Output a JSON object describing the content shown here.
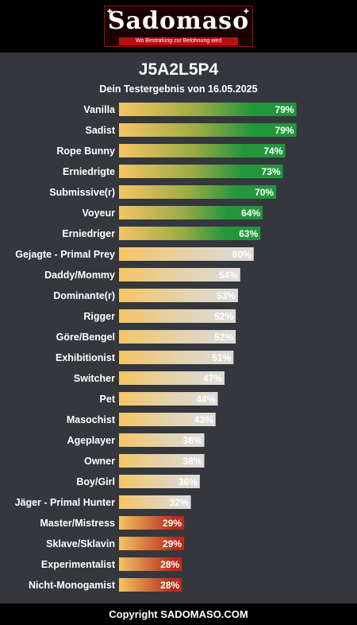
{
  "header": {
    "logo_text": "Sadomaso",
    "tagline": "Wo Bestrafung zur Belohnung wird"
  },
  "title": "J5A2L5P4",
  "subtitle": "Dein Testergebnis von 16.05.2025",
  "footer": "Copyright SADOMASO.COM",
  "colors": {
    "bar_start": "#f5c563",
    "high": "#23963c",
    "mid": "#dcdcdc",
    "low": "#b92c1b",
    "background": "#34373e"
  },
  "chart_data": {
    "type": "bar",
    "orientation": "horizontal",
    "categories": [
      "Vanilla",
      "Sadist",
      "Rope Bunny",
      "Erniedrigte",
      "Submissive(r)",
      "Voyeur",
      "Erniedriger",
      "Gejagte - Primal Prey",
      "Daddy/Mommy",
      "Dominante(r)",
      "Rigger",
      "Göre/Bengel",
      "Exhibitionist",
      "Switcher",
      "Pet",
      "Masochist",
      "Ageplayer",
      "Owner",
      "Boy/Girl",
      "Jäger - Primal Hunter",
      "Master/Mistress",
      "Sklave/Sklavin",
      "Experimentalist",
      "Nicht-Monogamist"
    ],
    "values": [
      79,
      79,
      74,
      73,
      70,
      64,
      63,
      60,
      54,
      53,
      52,
      52,
      51,
      47,
      44,
      43,
      38,
      38,
      36,
      32,
      29,
      29,
      28,
      28
    ],
    "labels": [
      "79%",
      "79%",
      "74%",
      "73%",
      "70%",
      "64%",
      "63%",
      "60%",
      "54%",
      "53%",
      "52%",
      "52%",
      "51%",
      "47%",
      "44%",
      "43%",
      "38%",
      "38%",
      "36%",
      "32%",
      "29%",
      "29%",
      "28%",
      "28%"
    ],
    "categories_style": [
      "high",
      "high",
      "high",
      "high",
      "high",
      "high",
      "high",
      "mid",
      "mid",
      "mid",
      "mid",
      "mid",
      "mid",
      "mid",
      "mid",
      "mid",
      "mid",
      "mid",
      "mid",
      "mid",
      "low",
      "low",
      "low",
      "low"
    ],
    "xlim": [
      0,
      100
    ]
  }
}
